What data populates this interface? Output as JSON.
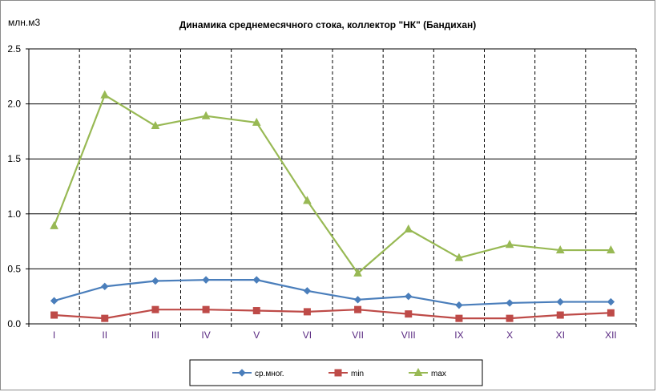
{
  "chart_data": {
    "type": "line",
    "title": "Динамика среднемесячного стока, коллектор  \"НК\" (Бандихан)",
    "ylabel": "млн.м3",
    "xlabel": "",
    "categories": [
      "I",
      "II",
      "III",
      "IV",
      "V",
      "VI",
      "VII",
      "VIII",
      "IX",
      "X",
      "XI",
      "XII"
    ],
    "y_tick_labels": [
      "0.0",
      "0.5",
      "1.0",
      "1.5",
      "2.0",
      "2.5"
    ],
    "y_ticks": [
      0,
      0.5,
      1,
      1.5,
      2,
      2.5
    ],
    "ylim": [
      0,
      2.5
    ],
    "grid": true,
    "legend_position": "bottom",
    "series": [
      {
        "name": "ср.мног.",
        "color": "#4a7ebb",
        "marker": "diamond",
        "values": [
          0.21,
          0.34,
          0.39,
          0.4,
          0.4,
          0.3,
          0.22,
          0.25,
          0.17,
          0.19,
          0.2,
          0.2
        ]
      },
      {
        "name": "min",
        "color": "#be4b48",
        "marker": "square",
        "values": [
          0.08,
          0.05,
          0.13,
          0.13,
          0.12,
          0.11,
          0.13,
          0.09,
          0.05,
          0.05,
          0.08,
          0.1
        ]
      },
      {
        "name": "max",
        "color": "#98b954",
        "marker": "triangle",
        "values": [
          0.89,
          2.08,
          1.8,
          1.89,
          1.83,
          1.12,
          0.46,
          0.86,
          0.6,
          0.72,
          0.67,
          0.67
        ]
      }
    ]
  }
}
